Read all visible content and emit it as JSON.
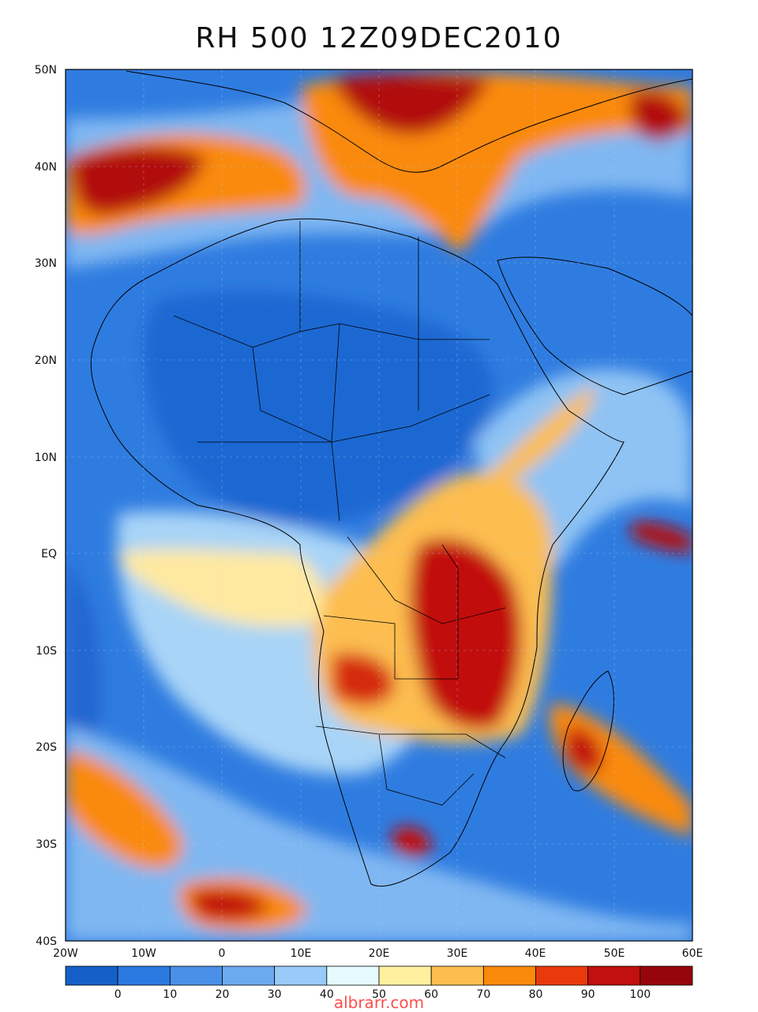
{
  "title": "RH 500 12Z09DEC2010",
  "watermark": "albrarr.com",
  "lat_ticks": [
    "50N",
    "40N",
    "30N",
    "20N",
    "10N",
    "EQ",
    "10S",
    "20S",
    "30S",
    "40S"
  ],
  "lon_ticks": [
    "20W",
    "10W",
    "0",
    "10E",
    "20E",
    "30E",
    "40E",
    "50E",
    "60E"
  ],
  "colorbar": {
    "labels": [
      "0",
      "10",
      "20",
      "30",
      "40",
      "50",
      "60",
      "70",
      "80",
      "90",
      "100"
    ],
    "colors": [
      "#1560c8",
      "#2a7ae2",
      "#4a90e8",
      "#6caaf0",
      "#98cbf7",
      "#e6fbff",
      "#fff0a0",
      "#fdbd4f",
      "#fa8a0a",
      "#e83a0a",
      "#c20f0f",
      "#96050b"
    ]
  },
  "map": {
    "extent": {
      "lon_min": -20,
      "lon_max": 60,
      "lat_min": -40,
      "lat_max": 50
    },
    "background_color": "#2f7ce0"
  }
}
